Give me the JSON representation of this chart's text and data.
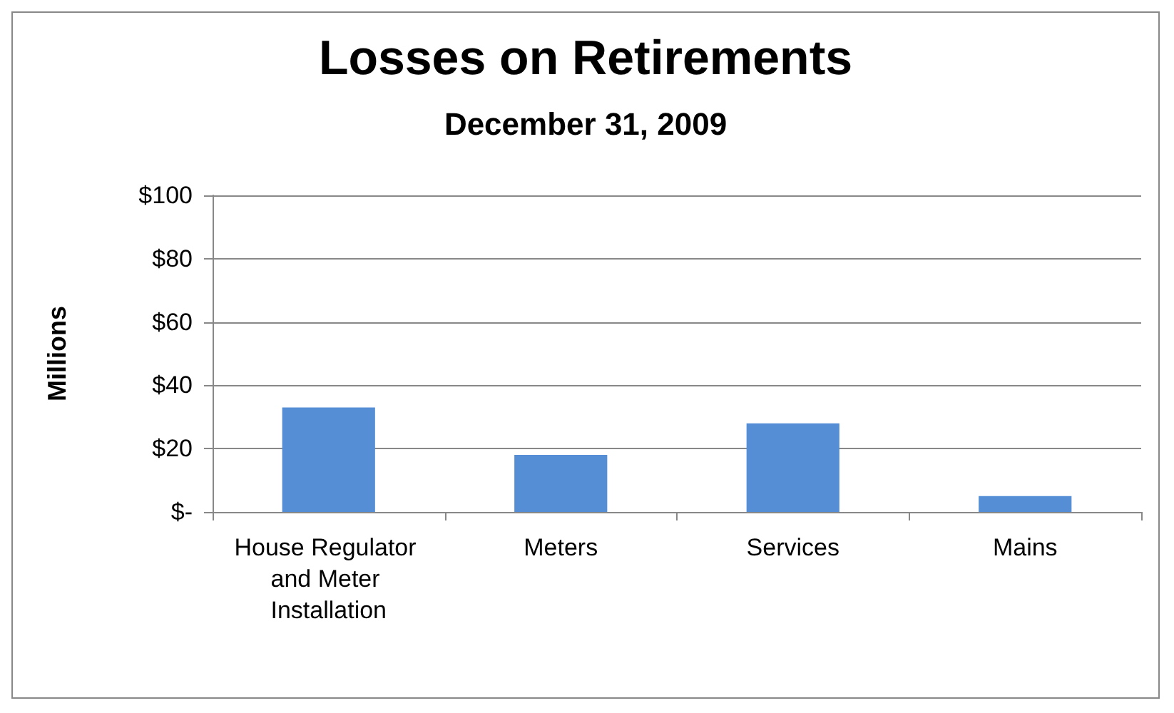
{
  "chart_data": {
    "type": "bar",
    "title": "Losses on Retirements",
    "subtitle": "December 31, 2009",
    "ylabel": "Millions",
    "categories": [
      "House Regulator and Meter Installation",
      "Meters",
      "Services",
      "Mains"
    ],
    "values": [
      33,
      18,
      28,
      5
    ],
    "color": "#558ed5",
    "ylim": [
      0,
      100
    ],
    "yticks": [
      {
        "value": 0,
        "label": "$-"
      },
      {
        "value": 20,
        "label": "$20"
      },
      {
        "value": 40,
        "label": "$40"
      },
      {
        "value": 60,
        "label": "$60"
      },
      {
        "value": 80,
        "label": "$80"
      },
      {
        "value": 100,
        "label": "$100"
      }
    ],
    "grid": "y"
  }
}
